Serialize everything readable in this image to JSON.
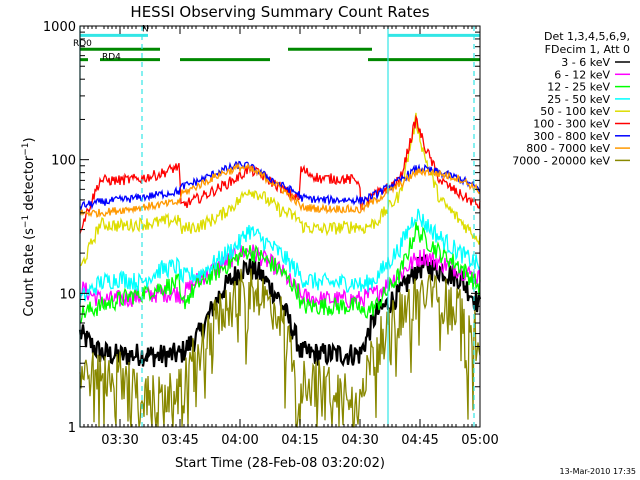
{
  "chart_data": {
    "type": "line",
    "title": "HESSI Observing Summary Count Rates",
    "xlabel": "Start Time (28-Feb-08 03:20:02)",
    "ylabel": "Count Rate (s⁻¹ detector⁻¹)",
    "x_range_minutes": [
      0,
      100
    ],
    "x_ticks": [
      {
        "t": 10,
        "label": "03:30"
      },
      {
        "t": 25,
        "label": "03:45"
      },
      {
        "t": 40,
        "label": "04:00"
      },
      {
        "t": 55,
        "label": "04:15"
      },
      {
        "t": 70,
        "label": "04:30"
      },
      {
        "t": 85,
        "label": "04:45"
      },
      {
        "t": 100,
        "label": "05:00"
      }
    ],
    "y_scale": "log",
    "ylim": [
      1,
      1000
    ],
    "y_ticks": [
      {
        "v": 1,
        "label": "1"
      },
      {
        "v": 10,
        "label": "10"
      },
      {
        "v": 100,
        "label": "100"
      },
      {
        "v": 1000,
        "label": "1000"
      }
    ],
    "legend_header": [
      "Det 1,3,4,5,6,9,",
      "FDecim 1, Att 0"
    ],
    "legend_placement": "right",
    "flags": [
      {
        "label": "N",
        "color": "#33e6e6",
        "segments": [
          [
            0,
            17
          ],
          [
            77,
            100
          ]
        ],
        "level": 850
      },
      {
        "label": "RD0",
        "color": "#008800",
        "segments": [
          [
            0,
            20
          ],
          [
            52,
            73
          ]
        ],
        "level": 670
      },
      {
        "label": "RD4",
        "color": "#008800",
        "segments": [
          [
            0,
            2
          ],
          [
            5,
            20
          ],
          [
            25,
            47.5
          ],
          [
            72,
            100
          ]
        ],
        "level": 560
      }
    ],
    "vlines": [
      {
        "t": 0,
        "color": "#33e6e6",
        "style": "solid"
      },
      {
        "t": 15.5,
        "color": "#33e6e6",
        "style": "dashed"
      },
      {
        "t": 77,
        "color": "#33e6e6",
        "style": "solid"
      },
      {
        "t": 98.5,
        "color": "#33e6e6",
        "style": "dashed"
      }
    ],
    "key_times": [
      0,
      5,
      10,
      15,
      20,
      24.9,
      25.1,
      30,
      35,
      40,
      42,
      45,
      50,
      54.9,
      55.1,
      60,
      65,
      69.9,
      70.1,
      74,
      80,
      84,
      86,
      90,
      95,
      100
    ],
    "series": [
      {
        "name": "3 - 6 keV",
        "color": "#000000",
        "values": [
          5,
          3.6,
          3.4,
          3.5,
          3.4,
          3.5,
          3.5,
          5,
          10,
          15,
          15.5,
          14,
          9,
          4,
          3.6,
          3.5,
          3.5,
          3.5,
          3.5,
          7,
          10,
          15,
          16,
          15,
          13,
          8
        ]
      },
      {
        "name": "6 - 12 keV",
        "color": "#ff00ff",
        "values": [
          11,
          9,
          9,
          9.5,
          10,
          10,
          9.5,
          13,
          16,
          20,
          21,
          19,
          15,
          10,
          9.5,
          9,
          9,
          9,
          9,
          10,
          14,
          18,
          19,
          17,
          15,
          13
        ]
      },
      {
        "name": "12 - 25 keV",
        "color": "#00ff00",
        "values": [
          7,
          8,
          9,
          10,
          11,
          12,
          8,
          12,
          15,
          19,
          21,
          19,
          15,
          10,
          8,
          8,
          8,
          8,
          7,
          8,
          14,
          30,
          26,
          20,
          16,
          11
        ]
      },
      {
        "name": "25 - 50 keV",
        "color": "#00ffff",
        "values": [
          9,
          12,
          13,
          12,
          15,
          16,
          13,
          14,
          18,
          24,
          30,
          26,
          20,
          14,
          13,
          12,
          12,
          12,
          11,
          13,
          22,
          40,
          34,
          26,
          20,
          16
        ]
      },
      {
        "name": "50 - 100 keV",
        "color": "#dddd00",
        "values": [
          15,
          33,
          32,
          33,
          34,
          36,
          30,
          32,
          38,
          50,
          60,
          55,
          42,
          36,
          32,
          30,
          31,
          32,
          30,
          34,
          55,
          200,
          110,
          50,
          35,
          25
        ]
      },
      {
        "name": "100 - 300 keV",
        "color": "#ff0000",
        "values": [
          30,
          70,
          70,
          72,
          78,
          90,
          45,
          52,
          62,
          75,
          85,
          78,
          62,
          50,
          85,
          72,
          72,
          70,
          45,
          55,
          70,
          200,
          130,
          70,
          55,
          45
        ]
      },
      {
        "name": "300 - 800 keV",
        "color": "#0000ff",
        "values": [
          45,
          48,
          50,
          52,
          55,
          58,
          62,
          70,
          82,
          92,
          90,
          80,
          65,
          55,
          52,
          50,
          50,
          50,
          49,
          55,
          70,
          85,
          85,
          80,
          72,
          60
        ]
      },
      {
        "name": "800 - 7000 keV",
        "color": "#ff9900",
        "values": [
          40,
          40,
          42,
          44,
          46,
          48,
          55,
          65,
          78,
          88,
          86,
          78,
          62,
          46,
          44,
          43,
          43,
          42,
          42,
          50,
          65,
          80,
          82,
          78,
          72,
          58
        ]
      },
      {
        "name": "7000 - 20000 keV",
        "color": "#888800",
        "values": [
          2.5,
          2.5,
          2.5,
          1.8,
          1.6,
          1.8,
          2,
          4,
          7,
          10,
          11,
          10,
          7,
          2.5,
          2.2,
          2.2,
          2,
          2,
          2,
          4,
          7,
          9,
          10,
          9,
          8,
          5
        ]
      }
    ],
    "footer_date": "13-Mar-2010 17:35"
  }
}
